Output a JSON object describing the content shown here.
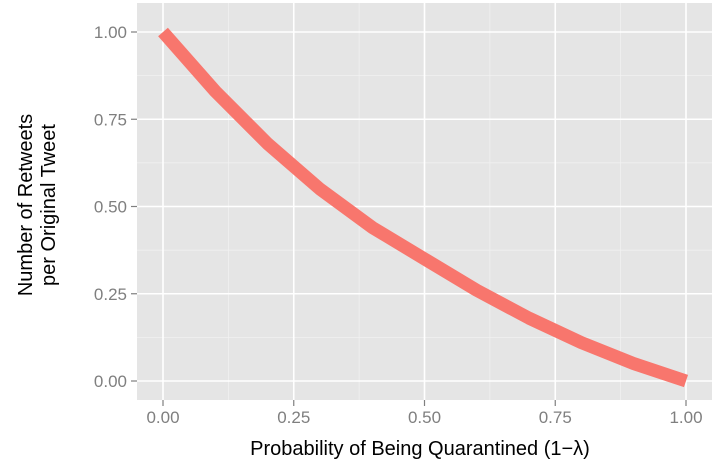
{
  "chart_data": {
    "type": "line",
    "xlabel": "Probability of Being Quarantined (1−λ)",
    "ylabel_lines": [
      "Number of Retweets",
      "per Original Tweet"
    ],
    "xlim": [
      -0.05,
      1.0
    ],
    "ylim": [
      -0.05,
      1.05
    ],
    "x_ticks": [
      0.0,
      0.25,
      0.5,
      0.75,
      1.0
    ],
    "x_tick_labels": [
      "0.00",
      "0.25",
      "0.50",
      "0.75",
      "1.00"
    ],
    "y_ticks": [
      0.0,
      0.25,
      0.5,
      0.75,
      1.0
    ],
    "y_tick_labels": [
      "0.00",
      "0.25",
      "0.50",
      "0.75",
      "1.00"
    ],
    "grid": true,
    "color": "#f8766d",
    "series": [
      {
        "x": [
          0.0,
          0.1,
          0.2,
          0.3,
          0.4,
          0.5,
          0.6,
          0.7,
          0.8,
          0.9,
          1.0
        ],
        "y": [
          1.0,
          0.83,
          0.68,
          0.55,
          0.44,
          0.35,
          0.26,
          0.18,
          0.11,
          0.05,
          0.0
        ]
      }
    ]
  }
}
